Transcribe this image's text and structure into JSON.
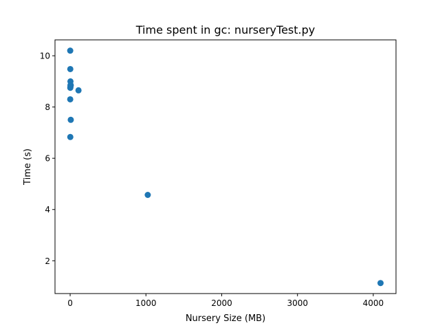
{
  "chart_data": {
    "type": "scatter",
    "title": "Time spent in gc: nurseryTest.py",
    "xlabel": "Nursery Size (MB)",
    "ylabel": "Time (s)",
    "xlim": [
      -200,
      4300
    ],
    "ylim": [
      0.72,
      10.62
    ],
    "xticks": [
      0,
      1000,
      2000,
      3000,
      4000
    ],
    "yticks": [
      2,
      4,
      6,
      8,
      10
    ],
    "grid": false,
    "legend": "none",
    "marker_color": "#1f77b4",
    "x": [
      1,
      2,
      4,
      8,
      4,
      2,
      1,
      8,
      2,
      4,
      110,
      1024,
      4096
    ],
    "y": [
      10.2,
      9.48,
      9.0,
      8.85,
      8.8,
      8.75,
      8.3,
      7.5,
      6.83,
      8.85,
      8.65,
      4.57,
      1.13
    ]
  }
}
